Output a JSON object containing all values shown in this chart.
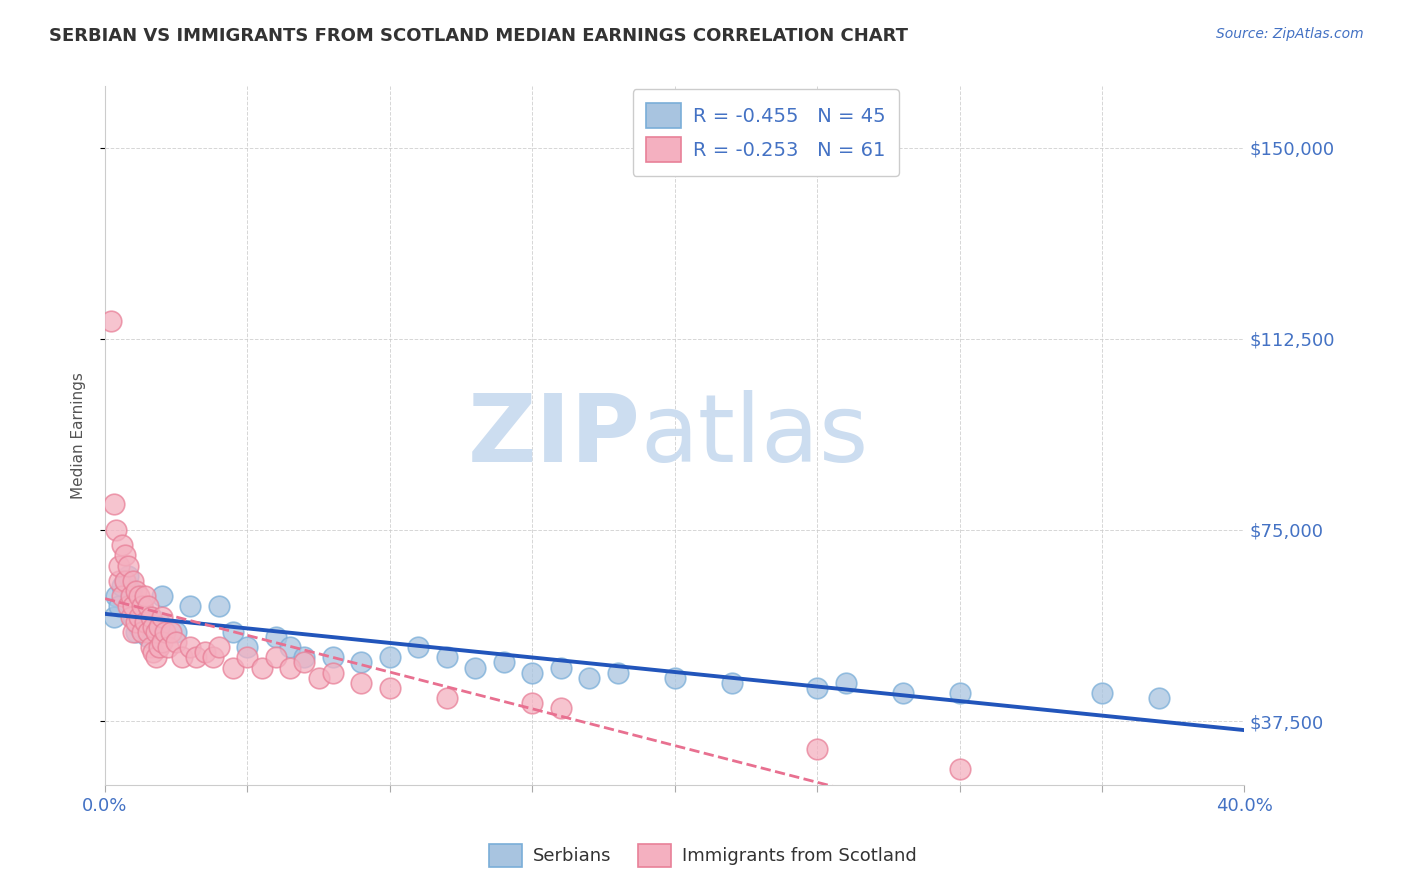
{
  "title": "SERBIAN VS IMMIGRANTS FROM SCOTLAND MEDIAN EARNINGS CORRELATION CHART",
  "source_text": "Source: ZipAtlas.com",
  "ylabel": "Median Earnings",
  "xlim": [
    0.0,
    0.4
  ],
  "ylim": [
    25000,
    162000
  ],
  "yticks": [
    37500,
    75000,
    112500,
    150000
  ],
  "ytick_labels": [
    "$37,500",
    "$75,000",
    "$112,500",
    "$150,000"
  ],
  "xticks": [
    0.0,
    0.05,
    0.1,
    0.15,
    0.2,
    0.25,
    0.3,
    0.35,
    0.4
  ],
  "title_color": "#333333",
  "title_fontsize": 13,
  "watermark_zip": "ZIP",
  "watermark_atlas": "atlas",
  "watermark_color": "#ccddf0",
  "series1_label": "Serbians",
  "series1_color": "#a8c4e0",
  "series1_edge": "#7aaed8",
  "series1_R": "-0.455",
  "series1_N": "45",
  "series2_label": "Immigrants from Scotland",
  "series2_color": "#f4b0c0",
  "series2_edge": "#e88098",
  "series2_R": "-0.253",
  "series2_N": "61",
  "trend1_color": "#2255bb",
  "trend2_color": "#e87090",
  "legend_text_color": "#4472c4",
  "series1_x": [
    0.003,
    0.004,
    0.005,
    0.006,
    0.007,
    0.008,
    0.009,
    0.01,
    0.011,
    0.012,
    0.013,
    0.014,
    0.015,
    0.016,
    0.017,
    0.018,
    0.019,
    0.02,
    0.025,
    0.03,
    0.04,
    0.045,
    0.05,
    0.06,
    0.065,
    0.07,
    0.08,
    0.09,
    0.1,
    0.11,
    0.12,
    0.13,
    0.14,
    0.15,
    0.16,
    0.17,
    0.18,
    0.2,
    0.22,
    0.25,
    0.26,
    0.28,
    0.3,
    0.35,
    0.37
  ],
  "series1_y": [
    58000,
    62000,
    60000,
    64000,
    65000,
    66000,
    63000,
    58000,
    55000,
    56000,
    60000,
    57000,
    54000,
    58000,
    55000,
    56000,
    57000,
    62000,
    55000,
    60000,
    60000,
    55000,
    52000,
    54000,
    52000,
    50000,
    50000,
    49000,
    50000,
    52000,
    50000,
    48000,
    49000,
    47000,
    48000,
    46000,
    47000,
    46000,
    45000,
    44000,
    45000,
    43000,
    43000,
    43000,
    42000
  ],
  "series2_x": [
    0.002,
    0.003,
    0.004,
    0.005,
    0.005,
    0.006,
    0.006,
    0.007,
    0.007,
    0.008,
    0.008,
    0.009,
    0.009,
    0.01,
    0.01,
    0.01,
    0.011,
    0.011,
    0.012,
    0.012,
    0.013,
    0.013,
    0.014,
    0.014,
    0.015,
    0.015,
    0.016,
    0.016,
    0.017,
    0.017,
    0.018,
    0.018,
    0.019,
    0.019,
    0.02,
    0.02,
    0.021,
    0.022,
    0.023,
    0.025,
    0.027,
    0.03,
    0.032,
    0.035,
    0.038,
    0.04,
    0.045,
    0.05,
    0.055,
    0.06,
    0.065,
    0.07,
    0.075,
    0.08,
    0.09,
    0.1,
    0.12,
    0.15,
    0.16,
    0.25,
    0.3
  ],
  "series2_y": [
    116000,
    80000,
    75000,
    65000,
    68000,
    72000,
    62000,
    70000,
    65000,
    68000,
    60000,
    62000,
    58000,
    65000,
    60000,
    55000,
    63000,
    57000,
    62000,
    58000,
    60000,
    55000,
    62000,
    57000,
    60000,
    55000,
    58000,
    52000,
    56000,
    51000,
    55000,
    50000,
    56000,
    52000,
    58000,
    53000,
    55000,
    52000,
    55000,
    53000,
    50000,
    52000,
    50000,
    51000,
    50000,
    52000,
    48000,
    50000,
    48000,
    50000,
    48000,
    49000,
    46000,
    47000,
    45000,
    44000,
    42000,
    41000,
    40000,
    32000,
    28000
  ]
}
